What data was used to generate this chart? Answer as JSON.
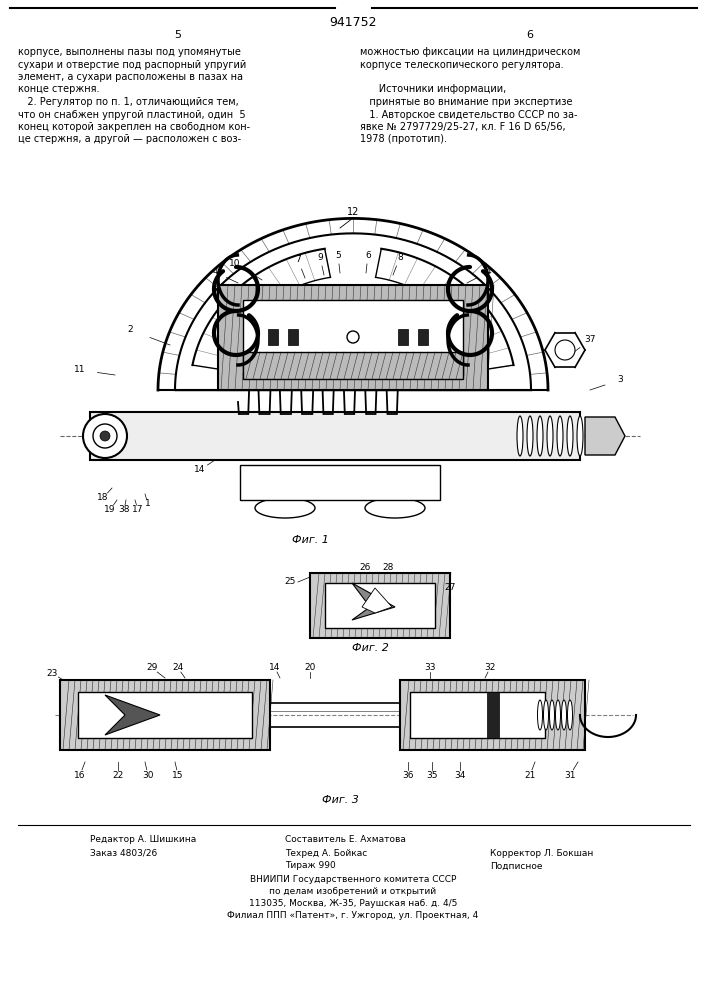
{
  "page_number": "941752",
  "col_left_number": "5",
  "col_right_number": "6",
  "background_color": "#ffffff",
  "line_color": "#000000",
  "text_color": "#000000",
  "left_text": [
    "корпусе, выполнены пазы под упомянутые",
    "сухари и отверстие под распорный упругий",
    "элемент, а сухари расположены в пазах на",
    "конце стержня.",
    "   2. Регулятор по п. 1, отличающийся тем,",
    "что он снабжен упругой пластиной, один  5",
    "конец которой закреплен на свободном кон-",
    "це стержня, а другой — расположен с воз-"
  ],
  "right_text": [
    "можностью фиксации на цилиндрическом",
    "корпусе телескопического регулятора.",
    "",
    "      Источники информации,",
    "   принятые во внимание при экспертизе",
    "   1. Авторское свидетельство СССР по за-",
    "явке № 2797729/25-27, кл. F 16 D 65/56,",
    "1978 (прототип)."
  ],
  "fig1_caption": "Фиг. 1",
  "fig2_caption": "Фиг. 2",
  "fig3_caption": "Фиг. 3",
  "footer_lines": [
    [
      "left",
      0.05,
      "Редактор А. Шишкина"
    ],
    [
      "left",
      0.05,
      "Заказ 4803/26"
    ],
    [
      "center",
      0.4,
      "Составитель Е. Ахматова"
    ],
    [
      "center",
      0.4,
      "Техред А. Бойкас"
    ],
    [
      "right",
      0.72,
      "Корректор Л. Бокшан"
    ],
    [
      "center",
      0.4,
      "Тираж 990"
    ],
    [
      "right",
      0.72,
      "Подписное"
    ]
  ],
  "org_lines": [
    "ВНИИПИ Государственного комитета СССР",
    "по делам изобретений и открытий",
    "113035, Москва, Ж-35, Раушская наб. д. 4/5",
    "Филиал ППП «Патент», г. Ужгород, ул. Проектная, 4"
  ]
}
